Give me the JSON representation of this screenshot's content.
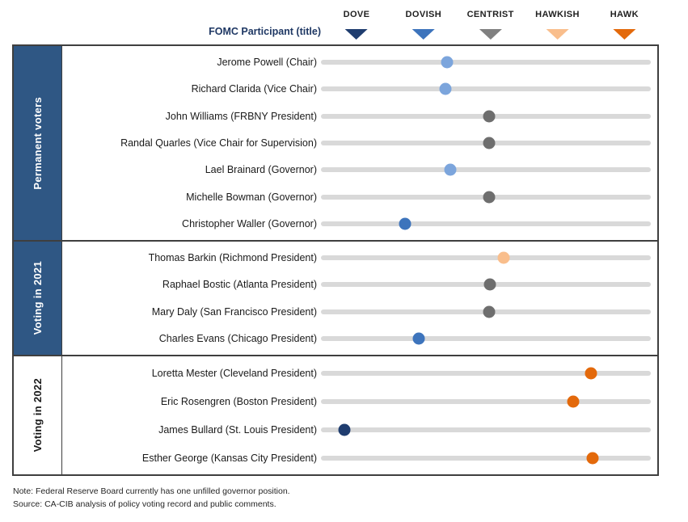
{
  "header": {
    "participant_column_label": "FOMC Participant (title)"
  },
  "scale_columns": [
    {
      "label": "DOVE",
      "color": "#1F3D6F",
      "icon": "triangle-down"
    },
    {
      "label": "DOVISH",
      "color": "#3D74BC",
      "icon": "triangle-down"
    },
    {
      "label": "CENTRIST",
      "color": "#808080",
      "icon": "triangle-down"
    },
    {
      "label": "HAWKISH",
      "color": "#F9BE8C",
      "icon": "triangle-down"
    },
    {
      "label": "HAWK",
      "color": "#E3690B",
      "icon": "triangle-down"
    }
  ],
  "chart_data": {
    "type": "scatter",
    "title": "FOMC participants on the dove-hawk spectrum",
    "x_axis": {
      "labels": [
        "DOVE",
        "DOVISH",
        "CENTRIST",
        "HAWKISH",
        "HAWK"
      ],
      "values": [
        1,
        2,
        3,
        4,
        5
      ],
      "range": [
        0.55,
        5.45
      ]
    },
    "sections": [
      {
        "label": "Permanent voters",
        "theme": "dark-blue",
        "participants": [
          {
            "name": "Jerome Powell (Chair)",
            "score": 2.38,
            "stance": "dovish-leaning",
            "color": "#7CA5DC"
          },
          {
            "name": "Richard Clarida (Vice Chair)",
            "score": 2.35,
            "stance": "dovish-leaning",
            "color": "#7CA5DC"
          },
          {
            "name": "John Williams (FRBNY President)",
            "score": 3.0,
            "stance": "centrist",
            "color": "#6E6E6E"
          },
          {
            "name": "Randal Quarles (Vice Chair for Supervision)",
            "score": 3.0,
            "stance": "centrist",
            "color": "#6E6E6E"
          },
          {
            "name": "Lael Brainard (Governor)",
            "score": 2.42,
            "stance": "dovish-leaning",
            "color": "#7CA5DC"
          },
          {
            "name": "Michelle Bowman (Governor)",
            "score": 3.0,
            "stance": "centrist",
            "color": "#6E6E6E"
          },
          {
            "name": "Christopher Waller (Governor)",
            "score": 1.75,
            "stance": "dovish",
            "color": "#3D74BC"
          }
        ]
      },
      {
        "label": "Voting in 2021",
        "theme": "dark-blue",
        "participants": [
          {
            "name": "Thomas Barkin (Richmond President)",
            "score": 3.22,
            "stance": "hawkish-leaning",
            "color": "#F9BE8C"
          },
          {
            "name": "Raphael Bostic (Atlanta President)",
            "score": 3.01,
            "stance": "centrist",
            "color": "#6E6E6E"
          },
          {
            "name": "Mary Daly (San Francisco President)",
            "score": 3.0,
            "stance": "centrist",
            "color": "#6E6E6E"
          },
          {
            "name": "Charles Evans (Chicago President)",
            "score": 1.95,
            "stance": "dovish",
            "color": "#3D74BC"
          }
        ]
      },
      {
        "label": "Voting in 2022",
        "theme": "light",
        "participants": [
          {
            "name": "Loretta Mester (Cleveland President)",
            "score": 4.53,
            "stance": "hawkish",
            "color": "#E3690B"
          },
          {
            "name": "Eric Rosengren (Boston President)",
            "score": 4.26,
            "stance": "hawkish",
            "color": "#E3690B"
          },
          {
            "name": "James Bullard (St. Louis President)",
            "score": 0.84,
            "stance": "dove",
            "color": "#1F3D6F"
          },
          {
            "name": "Esther George (Kansas City President)",
            "score": 4.55,
            "stance": "hawkish",
            "color": "#E3690B"
          }
        ]
      }
    ]
  },
  "footer": {
    "note": "Note: Federal Reserve Board currently has one unfilled  governor position.",
    "source": "Source: CA-CIB analysis of policy voting record and public comments."
  },
  "style_colors": {
    "sidebar_fill": "#2F5784",
    "bar_track": "#D9D9D9",
    "border": "#404040",
    "header_label": "#1F3864"
  }
}
